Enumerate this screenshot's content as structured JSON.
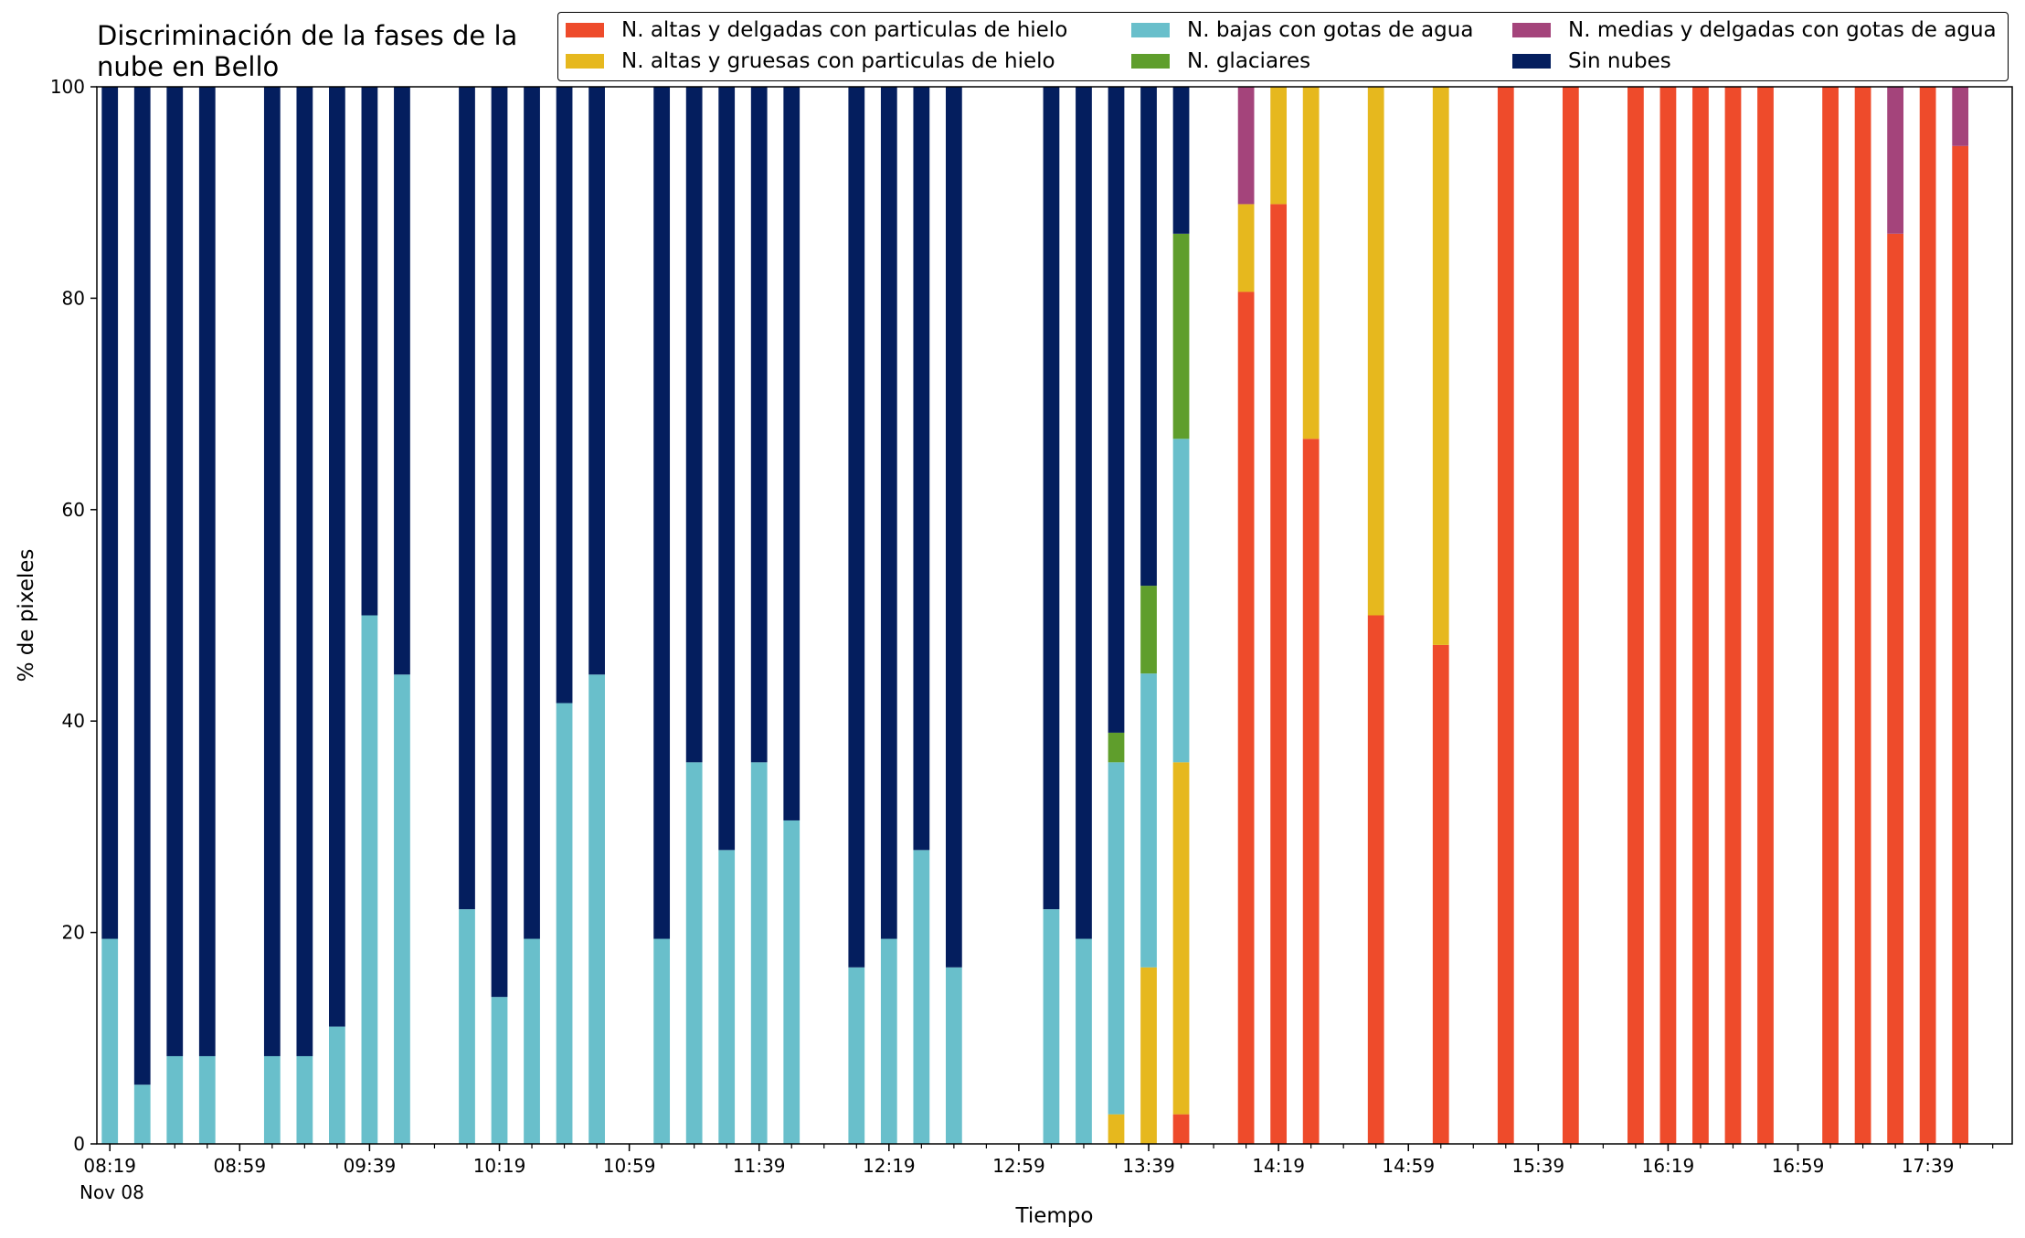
{
  "chart_data": {
    "type": "bar",
    "stacked": true,
    "title": "Discriminación de la fases de la\nnube en Bello",
    "xlabel": "Tiempo",
    "ylabel": "% de pixeles",
    "ylim": [
      0,
      100
    ],
    "yticks": [
      "0",
      "20",
      "40",
      "60",
      "80",
      "100"
    ],
    "xtick_labels": [
      "08:19",
      "08:59",
      "09:39",
      "10:19",
      "10:59",
      "11:39",
      "12:19",
      "12:59",
      "13:39",
      "14:19",
      "14:59",
      "15:39",
      "16:19",
      "16:59",
      "17:39"
    ],
    "x_date_label": "Nov 08",
    "x_range": [
      "08:15",
      "18:05"
    ],
    "interval_minutes": 10,
    "grid": false,
    "legend_position": "top",
    "series_order": [
      "ice_thin",
      "ice_thick",
      "water_low",
      "glacier",
      "water_mid",
      "clear"
    ],
    "series": [
      {
        "key": "ice_thin",
        "name": "N. altas y delgadas con particulas de hielo",
        "color": "#ee4b2b"
      },
      {
        "key": "ice_thick",
        "name": "N. altas y gruesas con particulas de hielo",
        "color": "#e6b81e"
      },
      {
        "key": "water_low",
        "name": "N. bajas con gotas de agua",
        "color": "#69bfcb"
      },
      {
        "key": "glacier",
        "name": "N. glaciares",
        "color": "#5f9e2c"
      },
      {
        "key": "water_mid",
        "name": "N. medias y delgadas con gotas de agua",
        "color": "#a4447b"
      },
      {
        "key": "clear",
        "name": "Sin nubes",
        "color": "#041e5e"
      }
    ],
    "bars": [
      {
        "time": "08:19",
        "water_low": 19.4,
        "clear": 80.6
      },
      {
        "time": "08:29",
        "water_low": 5.6,
        "clear": 94.4
      },
      {
        "time": "08:39",
        "water_low": 8.3,
        "clear": 91.7
      },
      {
        "time": "08:49",
        "water_low": 8.3,
        "clear": 91.7
      },
      {
        "time": "09:09",
        "water_low": 8.3,
        "clear": 91.7
      },
      {
        "time": "09:19",
        "water_low": 8.3,
        "clear": 91.7
      },
      {
        "time": "09:29",
        "water_low": 11.1,
        "clear": 88.9
      },
      {
        "time": "09:39",
        "water_low": 50.0,
        "clear": 50.0
      },
      {
        "time": "09:49",
        "water_low": 44.4,
        "clear": 55.6
      },
      {
        "time": "10:09",
        "water_low": 22.2,
        "clear": 77.8
      },
      {
        "time": "10:19",
        "water_low": 13.9,
        "clear": 86.1
      },
      {
        "time": "10:29",
        "water_low": 19.4,
        "clear": 80.6
      },
      {
        "time": "10:39",
        "water_low": 41.7,
        "clear": 58.3
      },
      {
        "time": "10:49",
        "water_low": 44.4,
        "clear": 55.6
      },
      {
        "time": "11:09",
        "water_low": 19.4,
        "clear": 80.6
      },
      {
        "time": "11:19",
        "water_low": 36.1,
        "clear": 63.9
      },
      {
        "time": "11:29",
        "water_low": 27.8,
        "clear": 72.2
      },
      {
        "time": "11:39",
        "water_low": 36.1,
        "clear": 63.9
      },
      {
        "time": "11:49",
        "water_low": 30.6,
        "clear": 69.4
      },
      {
        "time": "12:09",
        "water_low": 16.7,
        "clear": 83.3
      },
      {
        "time": "12:19",
        "water_low": 19.4,
        "clear": 80.6
      },
      {
        "time": "12:29",
        "water_low": 27.8,
        "clear": 72.2
      },
      {
        "time": "12:39",
        "water_low": 16.7,
        "clear": 83.3
      },
      {
        "time": "13:09",
        "water_low": 22.2,
        "clear": 77.8
      },
      {
        "time": "13:19",
        "water_low": 19.4,
        "clear": 80.6
      },
      {
        "time": "13:29",
        "ice_thick": 2.8,
        "water_low": 33.3,
        "glacier": 2.8,
        "clear": 61.1
      },
      {
        "time": "13:39",
        "ice_thick": 16.7,
        "water_low": 27.8,
        "glacier": 8.3,
        "clear": 47.2
      },
      {
        "time": "13:49",
        "ice_thin": 2.8,
        "ice_thick": 33.3,
        "water_low": 30.6,
        "glacier": 19.4,
        "clear": 13.9
      },
      {
        "time": "14:09",
        "ice_thin": 80.6,
        "ice_thick": 8.3,
        "water_mid": 11.1
      },
      {
        "time": "14:19",
        "ice_thin": 88.9,
        "ice_thick": 11.1
      },
      {
        "time": "14:29",
        "ice_thin": 66.7,
        "ice_thick": 33.3
      },
      {
        "time": "14:49",
        "ice_thin": 50.0,
        "ice_thick": 50.0
      },
      {
        "time": "15:09",
        "ice_thin": 47.2,
        "ice_thick": 52.8
      },
      {
        "time": "15:29",
        "ice_thin": 100
      },
      {
        "time": "15:49",
        "ice_thin": 100
      },
      {
        "time": "16:09",
        "ice_thin": 100
      },
      {
        "time": "16:19",
        "ice_thin": 100
      },
      {
        "time": "16:29",
        "ice_thin": 100
      },
      {
        "time": "16:39",
        "ice_thin": 100
      },
      {
        "time": "16:49",
        "ice_thin": 100
      },
      {
        "time": "17:09",
        "ice_thin": 100
      },
      {
        "time": "17:19",
        "ice_thin": 100
      },
      {
        "time": "17:29",
        "ice_thin": 86.1,
        "water_mid": 13.9
      },
      {
        "time": "17:39",
        "ice_thin": 100
      },
      {
        "time": "17:49",
        "ice_thin": 94.4,
        "water_mid": 5.6
      }
    ]
  }
}
